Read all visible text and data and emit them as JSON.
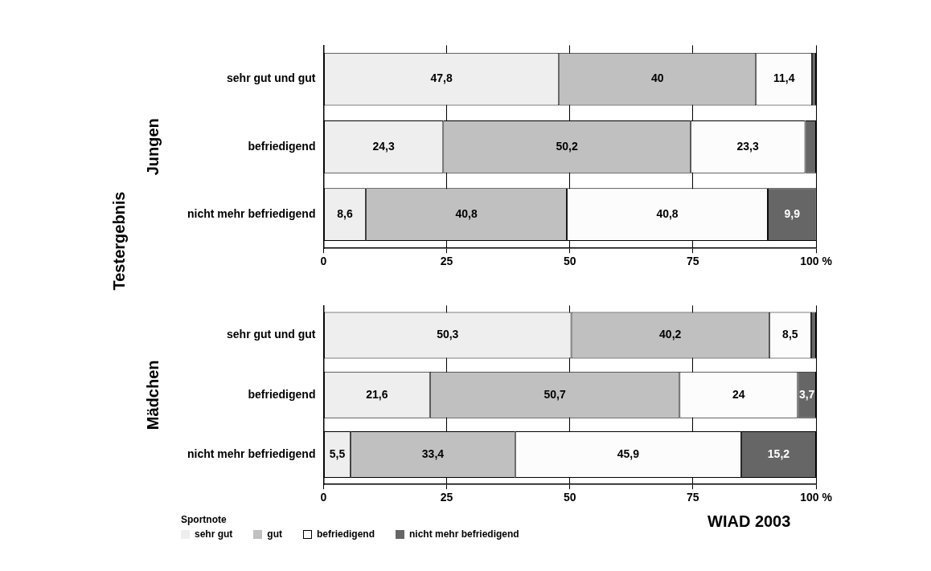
{
  "chart_data": [
    {
      "type": "bar",
      "orientation": "horizontal",
      "stacked": true,
      "ylabel": "Jungen",
      "categories": [
        "sehr gut und gut",
        "befriedigend",
        "nicht mehr befriedigend"
      ],
      "series": [
        {
          "color": "#eeeeee",
          "values": [
            47.8,
            24.3,
            8.6
          ],
          "value_labels": [
            "47,8",
            "24,3",
            "8,6"
          ]
        },
        {
          "color": "#c0c0c0",
          "values": [
            40,
            50.2,
            40.8
          ],
          "value_labels": [
            "40",
            "50,2",
            "40,8"
          ]
        },
        {
          "color": "#fcfcfc",
          "values": [
            11.4,
            23.3,
            40.8
          ],
          "value_labels": [
            "11,4",
            "23,3",
            "40,8"
          ]
        },
        {
          "color": "#666666",
          "values": [
            0.8,
            2.2,
            9.9
          ],
          "value_labels": [
            null,
            null,
            "9,9"
          ]
        }
      ],
      "xlim": [
        0,
        100
      ],
      "xticks": [
        0,
        25,
        50,
        75,
        {
          "value": 100,
          "label": "100 %"
        }
      ],
      "grid": "x",
      "legend": false,
      "annotations": [
        "Testergebnis"
      ]
    },
    {
      "type": "bar",
      "orientation": "horizontal",
      "stacked": true,
      "ylabel": "Mädchen",
      "categories": [
        "sehr gut und gut",
        "befriedigend",
        "nicht mehr befriedigend"
      ],
      "series": [
        {
          "name": "sehr gut",
          "color": "#eeeeee",
          "values": [
            50.3,
            21.6,
            5.5
          ],
          "value_labels": [
            "50,3",
            "21,6",
            "5,5"
          ]
        },
        {
          "name": "gut",
          "color": "#c0c0c0",
          "values": [
            40.2,
            50.7,
            33.4
          ],
          "value_labels": [
            "40,2",
            "50,7",
            "33,4"
          ]
        },
        {
          "name": "befriedigend",
          "color": "#fcfcfc",
          "values": [
            8.5,
            24,
            45.9
          ],
          "value_labels": [
            "8,5",
            "24",
            "45,9"
          ]
        },
        {
          "name": "nicht mehr befriedigend",
          "color": "#666666",
          "values": [
            1,
            3.7,
            15.2
          ],
          "value_labels": [
            null,
            "3,7",
            "15,2"
          ]
        }
      ],
      "xlim": [
        0,
        100
      ],
      "xticks": [
        0,
        25,
        50,
        75,
        {
          "value": 100,
          "label": "100 %"
        }
      ],
      "grid": "x",
      "legend": "bottom",
      "legend_title": "Sportnote",
      "annotations": [
        "WIAD 2003"
      ]
    }
  ]
}
